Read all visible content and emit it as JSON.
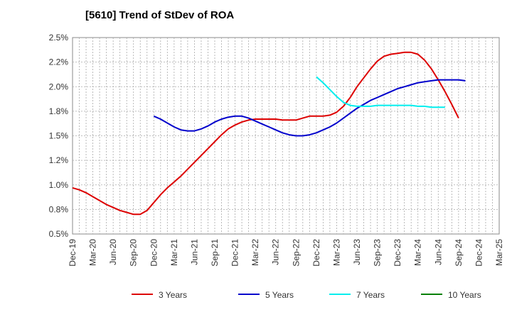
{
  "title": "[5610]  Trend of StDev of ROA",
  "chart_data": {
    "type": "line",
    "title": "[5610]  Trend of StDev of ROA",
    "xlabel": "",
    "ylabel": "",
    "x_ticks": [
      "Dec-19",
      "Mar-20",
      "Jun-20",
      "Sep-20",
      "Dec-20",
      "Mar-21",
      "Jun-21",
      "Sep-21",
      "Dec-21",
      "Mar-22",
      "Jun-22",
      "Sep-22",
      "Dec-22",
      "Mar-23",
      "Jun-23",
      "Sep-23",
      "Dec-23",
      "Mar-24",
      "Jun-24",
      "Sep-24",
      "Dec-24",
      "Mar-25"
    ],
    "y_ticks": [
      "0.5%",
      "0.8%",
      "1.0%",
      "1.2%",
      "1.5%",
      "1.8%",
      "2.0%",
      "2.2%",
      "2.5%"
    ],
    "ylim": [
      0.5,
      2.5
    ],
    "grid": true,
    "legend_position": "bottom",
    "series": [
      {
        "name": "3 Years",
        "color": "#dd0000",
        "x_start": "Dec-19",
        "values": [
          0.97,
          0.95,
          0.92,
          0.88,
          0.84,
          0.8,
          0.77,
          0.74,
          0.72,
          0.7,
          0.7,
          0.74,
          0.82,
          0.9,
          0.97,
          1.03,
          1.09,
          1.16,
          1.23,
          1.3,
          1.37,
          1.44,
          1.51,
          1.57,
          1.61,
          1.64,
          1.66,
          1.67,
          1.67,
          1.67,
          1.67,
          1.66,
          1.66,
          1.66,
          1.68,
          1.7,
          1.7,
          1.7,
          1.71,
          1.74,
          1.8,
          1.89,
          2.0,
          2.09,
          2.18,
          2.26,
          2.31,
          2.33,
          2.34,
          2.35,
          2.35,
          2.33,
          2.27,
          2.18,
          2.07,
          1.95,
          1.82,
          1.68
        ]
      },
      {
        "name": "5 Years",
        "color": "#0000cc",
        "x_start": "Dec-20",
        "values": [
          1.7,
          1.67,
          1.63,
          1.59,
          1.56,
          1.55,
          1.55,
          1.57,
          1.6,
          1.64,
          1.67,
          1.69,
          1.7,
          1.7,
          1.68,
          1.65,
          1.62,
          1.59,
          1.56,
          1.53,
          1.51,
          1.5,
          1.5,
          1.51,
          1.53,
          1.56,
          1.59,
          1.63,
          1.68,
          1.73,
          1.78,
          1.82,
          1.86,
          1.89,
          1.92,
          1.95,
          1.98,
          2.0,
          2.02,
          2.04,
          2.05,
          2.06,
          2.07,
          2.07,
          2.07,
          2.07,
          2.06
        ]
      },
      {
        "name": "7 Years",
        "color": "#00eeee",
        "x_start": "Dec-22",
        "values": [
          2.1,
          2.04,
          1.97,
          1.9,
          1.84,
          1.81,
          1.8,
          1.8,
          1.8,
          1.81,
          1.81,
          1.81,
          1.81,
          1.81,
          1.81,
          1.8,
          1.8,
          1.79,
          1.79,
          1.79
        ]
      },
      {
        "name": "10 Years",
        "color": "#008000",
        "x_start": "Dec-24",
        "values": []
      }
    ]
  }
}
